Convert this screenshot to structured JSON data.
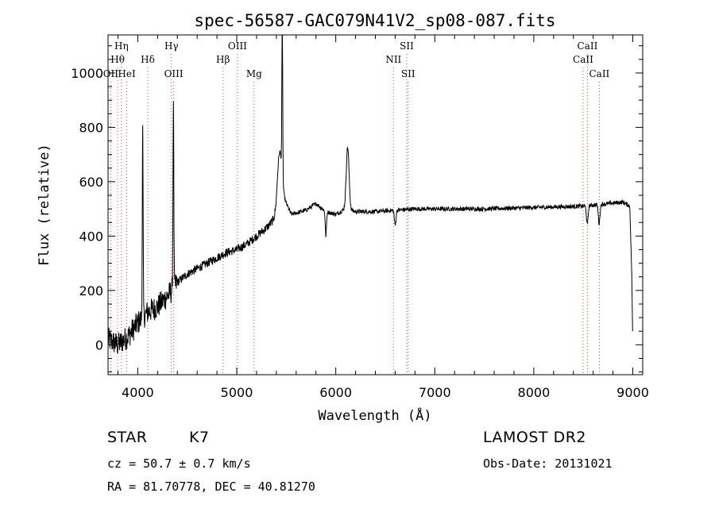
{
  "chart_data": {
    "type": "line",
    "title": "spec-56587-GAC079N41V2_sp08-087.fits",
    "xlabel": "Wavelength (Å)",
    "ylabel": "Flux (relative)",
    "xlim": [
      3700,
      9100
    ],
    "ylim": [
      -110,
      1140
    ],
    "x_ticks": [
      4000,
      5000,
      6000,
      7000,
      8000,
      9000
    ],
    "x_tick_labels": [
      "4000",
      "5000",
      "6000",
      "7000",
      "8000",
      "9000"
    ],
    "y_ticks": [
      0,
      200,
      400,
      600,
      800,
      1000
    ],
    "y_tick_labels": [
      "0",
      "200",
      "400",
      "600",
      "800",
      "1000"
    ],
    "grid": false,
    "continuum_knots": [
      [
        3700,
        20
      ],
      [
        3800,
        0
      ],
      [
        3900,
        30
      ],
      [
        4000,
        80
      ],
      [
        4100,
        120
      ],
      [
        4200,
        140
      ],
      [
        4300,
        180
      ],
      [
        4350,
        200
      ],
      [
        4400,
        230
      ],
      [
        4500,
        260
      ],
      [
        4600,
        280
      ],
      [
        4700,
        300
      ],
      [
        4800,
        320
      ],
      [
        4900,
        340
      ],
      [
        5000,
        350
      ],
      [
        5100,
        370
      ],
      [
        5200,
        400
      ],
      [
        5300,
        430
      ],
      [
        5400,
        470
      ],
      [
        5450,
        560
      ],
      [
        5550,
        480
      ],
      [
        5700,
        495
      ],
      [
        5800,
        520
      ],
      [
        5900,
        490
      ],
      [
        6000,
        480
      ],
      [
        6100,
        500
      ],
      [
        6200,
        490
      ],
      [
        6400,
        490
      ],
      [
        6600,
        495
      ],
      [
        6800,
        500
      ],
      [
        7000,
        500
      ],
      [
        7500,
        500
      ],
      [
        8000,
        505
      ],
      [
        8500,
        510
      ],
      [
        8900,
        525
      ],
      [
        8970,
        510
      ],
      [
        8990,
        250
      ],
      [
        9000,
        0
      ]
    ],
    "features": [
      {
        "x": 4050,
        "height": 700,
        "width": 4
      },
      {
        "x": 4360,
        "height": 720,
        "width": 4
      },
      {
        "x": 5460,
        "height": 660,
        "width": 4
      },
      {
        "x": 5430,
        "height": 180,
        "width": 22
      },
      {
        "x": 6120,
        "height": 230,
        "width": 14
      },
      {
        "x": 5900,
        "height": -90,
        "width": 6
      },
      {
        "x": 6600,
        "height": -55,
        "width": 8
      },
      {
        "x": 8540,
        "height": -70,
        "width": 8
      },
      {
        "x": 8660,
        "height": -70,
        "width": 8
      }
    ],
    "series": [
      {
        "color": "#000000"
      }
    ]
  },
  "spectral_lines": [
    {
      "name": "Hη",
      "x": 3835,
      "row": 0
    },
    {
      "name": "Hθ",
      "x": 3797,
      "row": 1
    },
    {
      "name": "OII",
      "x": 3727,
      "row": 2
    },
    {
      "name": "HeI",
      "x": 3889,
      "row": 2
    },
    {
      "name": "Hδ",
      "x": 4101,
      "row": 1
    },
    {
      "name": "Hγ",
      "x": 4340,
      "row": 0
    },
    {
      "name": "OIII",
      "x": 4363,
      "row": 2
    },
    {
      "name": "OIII",
      "x": 5007,
      "row": 0
    },
    {
      "name": "Hβ",
      "x": 4861,
      "row": 1
    },
    {
      "name": "Mg",
      "x": 5175,
      "row": 2
    },
    {
      "name": "SII",
      "x": 6717,
      "row": 0
    },
    {
      "name": "NII",
      "x": 6583,
      "row": 1
    },
    {
      "name": "SII",
      "x": 6731,
      "row": 2
    },
    {
      "name": "CaII",
      "x": 8542,
      "row": 0
    },
    {
      "name": "CaII",
      "x": 8498,
      "row": 1
    },
    {
      "name": "CaII",
      "x": 8662,
      "row": 2
    }
  ],
  "info": {
    "class": "STAR",
    "subclass": "K7",
    "survey": "LAMOST DR2",
    "cz": "cz = 50.7 ± 0.7 km/s",
    "obs_date": "Obs-Date: 20131021",
    "coords": "RA =  81.70778, DEC =  40.81270"
  }
}
